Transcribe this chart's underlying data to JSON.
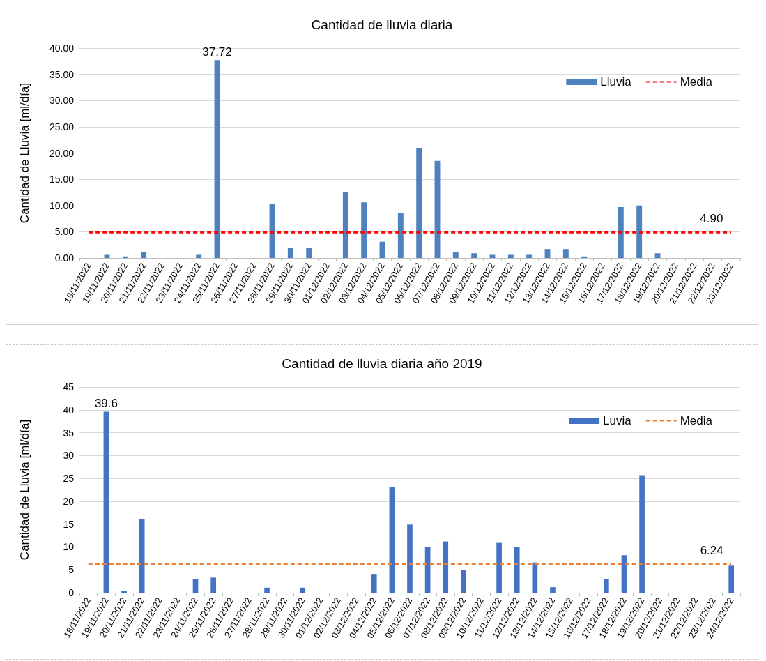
{
  "chart_data": [
    {
      "type": "bar",
      "title": "Cantidad de lluvia diaria",
      "ylabel": "Cantidad de Lluvia [ml/día]",
      "categories": [
        "18/11/2022",
        "19/11/2022",
        "20/11/2022",
        "21/11/2022",
        "22/11/2022",
        "23/11/2022",
        "24/11/2022",
        "25/11/2022",
        "26/11/2022",
        "27/11/2022",
        "28/11/2022",
        "29/11/2022",
        "30/11/2022",
        "01/12/2022",
        "02/12/2022",
        "03/12/2022",
        "04/12/2022",
        "05/12/2022",
        "06/12/2022",
        "07/12/2022",
        "08/12/2022",
        "09/12/2022",
        "10/12/2022",
        "11/12/2022",
        "12/12/2022",
        "13/12/2022",
        "14/12/2022",
        "15/12/2022",
        "16/12/2022",
        "17/12/2022",
        "18/12/2022",
        "19/12/2022",
        "20/12/2022",
        "21/12/2022",
        "22/12/2022",
        "23/12/2022"
      ],
      "series": [
        {
          "name": "Lluvia",
          "color": "#4f81bd",
          "values": [
            0,
            0.6,
            0.3,
            1.1,
            0,
            0,
            0.6,
            37.72,
            0,
            0,
            10.3,
            2.0,
            2.0,
            0,
            12.5,
            10.6,
            3.1,
            8.6,
            21.0,
            18.5,
            1.1,
            0.9,
            0.6,
            0.6,
            0.6,
            1.7,
            1.7,
            0.3,
            0,
            9.7,
            10.0,
            0.9,
            0,
            0,
            0,
            0
          ],
          "value_labels": [
            null,
            null,
            null,
            null,
            null,
            null,
            null,
            "37.72",
            null,
            null,
            null,
            null,
            null,
            null,
            null,
            null,
            null,
            null,
            null,
            null,
            null,
            null,
            null,
            null,
            null,
            null,
            null,
            null,
            null,
            null,
            null,
            null,
            null,
            null,
            null,
            null
          ]
        },
        {
          "name": "Media",
          "type": "line",
          "color": "#ff0000",
          "line_style": "dashed",
          "values": [
            4.9,
            4.9,
            4.9,
            4.9,
            4.9,
            4.9,
            4.9,
            4.9,
            4.9,
            4.9,
            4.9,
            4.9,
            4.9,
            4.9,
            4.9,
            4.9,
            4.9,
            4.9,
            4.9,
            4.9,
            4.9,
            4.9,
            4.9,
            4.9,
            4.9,
            4.9,
            4.9,
            4.9,
            4.9,
            4.9,
            4.9,
            4.9,
            4.9,
            4.9,
            4.9,
            4.9
          ],
          "value_labels": [
            null,
            null,
            null,
            null,
            null,
            null,
            null,
            null,
            null,
            null,
            null,
            null,
            null,
            null,
            null,
            null,
            null,
            null,
            null,
            null,
            null,
            null,
            null,
            null,
            null,
            null,
            null,
            null,
            null,
            null,
            null,
            null,
            null,
            null,
            null,
            "4.90"
          ]
        }
      ],
      "ylim": [
        0,
        40
      ],
      "yticks": [
        {
          "value": 0,
          "label": "0.00"
        },
        {
          "value": 5,
          "label": "5.00"
        },
        {
          "value": 10,
          "label": "10.00"
        },
        {
          "value": 15,
          "label": "15.00"
        },
        {
          "value": 20,
          "label": "20.00"
        },
        {
          "value": 25,
          "label": "25.00"
        },
        {
          "value": 30,
          "label": "30.00"
        },
        {
          "value": 35,
          "label": "35.00"
        },
        {
          "value": 40,
          "label": "40.00"
        }
      ],
      "grid": "y",
      "legend": "top right",
      "marker": "none"
    },
    {
      "type": "bar",
      "title": "Cantidad de lluvia diaria año 2019",
      "ylabel": "Cantidad de Lluvia [ml/día]",
      "categories": [
        "18/11/2022",
        "19/11/2022",
        "20/11/2022",
        "21/11/2022",
        "22/11/2022",
        "23/11/2022",
        "24/11/2022",
        "25/11/2022",
        "26/11/2022",
        "27/11/2022",
        "28/11/2022",
        "29/11/2022",
        "30/11/2022",
        "01/12/2022",
        "02/12/2022",
        "03/12/2022",
        "04/12/2022",
        "05/12/2022",
        "06/12/2022",
        "07/12/2022",
        "08/12/2022",
        "09/12/2022",
        "10/12/2022",
        "11/12/2022",
        "12/12/2022",
        "13/12/2022",
        "14/12/2022",
        "15/12/2022",
        "16/12/2022",
        "17/12/2022",
        "18/12/2022",
        "19/12/2022",
        "20/12/2022",
        "21/12/2022",
        "22/12/2022",
        "23/12/2022",
        "24/12/2022"
      ],
      "series": [
        {
          "name": "Luvia",
          "color": "#4472c4",
          "values": [
            0,
            39.6,
            0.4,
            16.1,
            0,
            0,
            2.9,
            3.3,
            0,
            0,
            1.1,
            0,
            1.1,
            0,
            0,
            0,
            4.1,
            23.1,
            14.9,
            10.0,
            11.2,
            4.9,
            0,
            10.9,
            10.0,
            6.6,
            1.2,
            0,
            0,
            3.0,
            8.2,
            25.7,
            0,
            0,
            0,
            0,
            5.9
          ],
          "value_labels": [
            null,
            "39.6",
            null,
            null,
            null,
            null,
            null,
            null,
            null,
            null,
            null,
            null,
            null,
            null,
            null,
            null,
            null,
            null,
            null,
            null,
            null,
            null,
            null,
            null,
            null,
            null,
            null,
            null,
            null,
            null,
            null,
            null,
            null,
            null,
            null,
            null,
            null
          ]
        },
        {
          "name": "Media",
          "type": "line",
          "color": "#ed7d31",
          "line_style": "dashed",
          "values": [
            6.24,
            6.24,
            6.24,
            6.24,
            6.24,
            6.24,
            6.24,
            6.24,
            6.24,
            6.24,
            6.24,
            6.24,
            6.24,
            6.24,
            6.24,
            6.24,
            6.24,
            6.24,
            6.24,
            6.24,
            6.24,
            6.24,
            6.24,
            6.24,
            6.24,
            6.24,
            6.24,
            6.24,
            6.24,
            6.24,
            6.24,
            6.24,
            6.24,
            6.24,
            6.24,
            6.24,
            6.24
          ],
          "value_labels": [
            null,
            null,
            null,
            null,
            null,
            null,
            null,
            null,
            null,
            null,
            null,
            null,
            null,
            null,
            null,
            null,
            null,
            null,
            null,
            null,
            null,
            null,
            null,
            null,
            null,
            null,
            null,
            null,
            null,
            null,
            null,
            null,
            null,
            null,
            null,
            null,
            "6.24"
          ]
        }
      ],
      "ylim": [
        0,
        45
      ],
      "yticks": [
        0,
        5,
        10,
        15,
        20,
        25,
        30,
        35,
        40,
        45
      ],
      "grid": "y",
      "legend": "top right",
      "marker": "none"
    }
  ]
}
